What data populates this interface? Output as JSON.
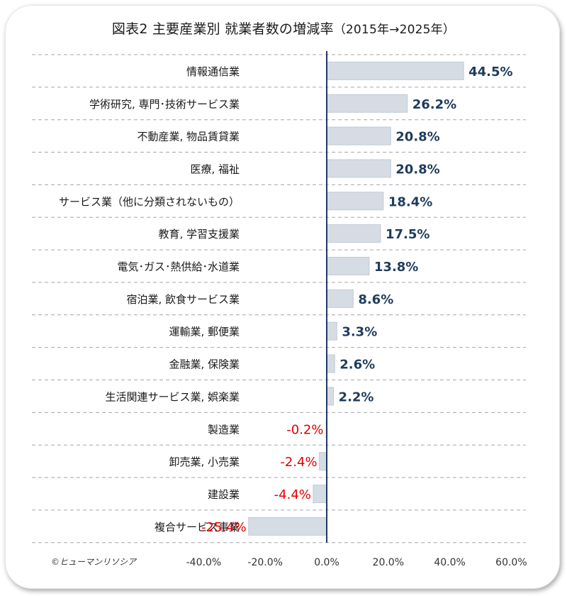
{
  "title": "図表2 主要産業別 就業者数の増減率",
  "subtitle": "（2015年→2025年）",
  "copyright": "©ヒューマンリソシア",
  "colors": {
    "bar_fill": "#d6dce4",
    "bar_edge": "#c3cad4",
    "positive_label": "#1f3c5c",
    "negative_label": "#e00000",
    "axis": "#1f3864",
    "gridline": "#a6a6a6"
  },
  "chart_data": {
    "type": "bar",
    "orientation": "horizontal",
    "title": "図表2 主要産業別 就業者数の増減率（2015年→2025年）",
    "categories": [
      "情報通信業",
      "学術研究, 専門･技術サービス業",
      "不動産業, 物品賃貸業",
      "医療, 福祉",
      "サービス業（他に分類されないもの）",
      "教育, 学習支援業",
      "電気･ガス･熱供給･水道業",
      "宿泊業, 飲食サービス業",
      "運輸業, 郵便業",
      "金融業, 保険業",
      "生活関連サービス業, 娯楽業",
      "製造業",
      "卸売業, 小売業",
      "建設業",
      "複合サービス事業"
    ],
    "values": [
      44.5,
      26.2,
      20.8,
      20.8,
      18.4,
      17.5,
      13.8,
      8.6,
      3.3,
      2.6,
      2.2,
      -0.2,
      -2.4,
      -4.4,
      -25.4
    ],
    "value_labels": [
      "44.5%",
      "26.2%",
      "20.8%",
      "20.8%",
      "18.4%",
      "17.5%",
      "13.8%",
      "8.6%",
      "3.3%",
      "2.6%",
      "2.2%",
      "-0.2%",
      "-2.4%",
      "-4.4%",
      "-25.4%"
    ],
    "xlim": [
      -40,
      60
    ],
    "x_ticks": [
      -40,
      -20,
      0,
      20,
      40,
      60
    ],
    "x_tick_labels": [
      "-40.0%",
      "-20.0%",
      "0.0%",
      "20.0%",
      "40.0%",
      "60.0%"
    ],
    "xlabel": "",
    "ylabel": "",
    "grid": "horizontal dashed",
    "legend": "none"
  }
}
